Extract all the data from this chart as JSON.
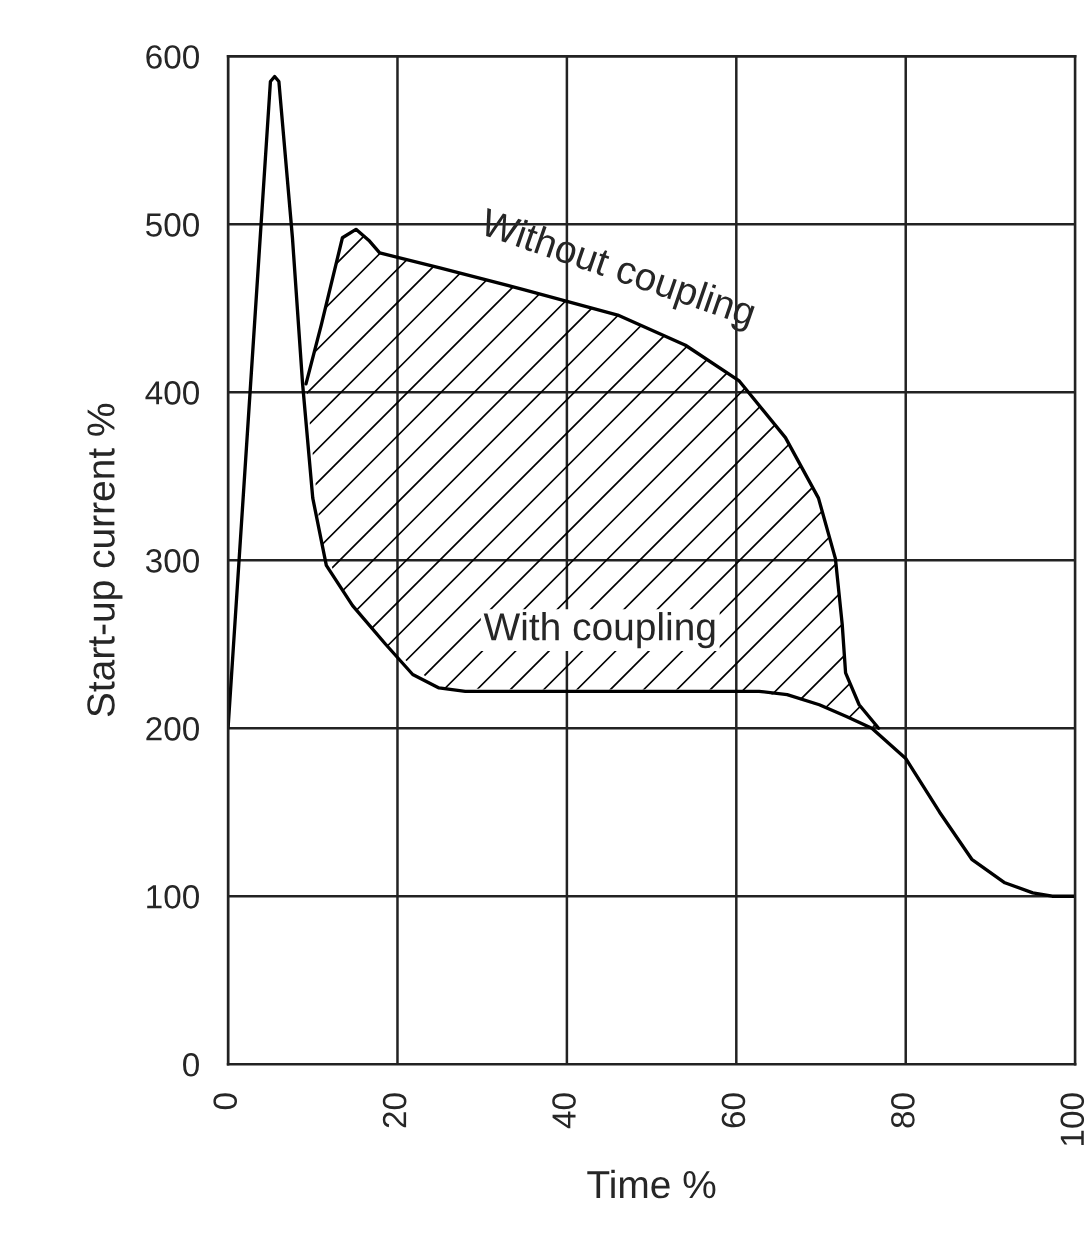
{
  "chart_data": {
    "type": "line",
    "xlabel": "Time %",
    "ylabel": "Start-up current %",
    "xlim": [
      0,
      100
    ],
    "xticks": [
      0,
      20,
      40,
      60,
      80,
      100
    ],
    "ylim": [
      0,
      600
    ],
    "yticks": [
      0,
      100,
      200,
      300,
      400,
      500,
      600
    ],
    "grid": true,
    "marker": "none",
    "line_style": "solid",
    "series": [
      {
        "name": "Without coupling",
        "color": "#000000",
        "x": [
          9.2,
          11,
          13.5,
          15.1,
          16.7,
          17.9,
          25,
          35,
          46,
          54,
          60.3,
          65.8,
          69.7,
          71.7,
          72.5,
          72.9,
          74.5,
          76.8
        ],
        "values": [
          405,
          440,
          492,
          497,
          490,
          483,
          474,
          461,
          446,
          428,
          407,
          373,
          337,
          301,
          262,
          233,
          214,
          200
        ],
        "lower": [
          405,
          310,
          282,
          270,
          260,
          253,
          224,
          223,
          223,
          223,
          223,
          219,
          214,
          210,
          208,
          207,
          203,
          200
        ],
        "upper": [
          405,
          440,
          492,
          497,
          490,
          483,
          474,
          461,
          446,
          428,
          407,
          373,
          337,
          301,
          262,
          233,
          214,
          200
        ]
      },
      {
        "name": "With coupling",
        "color": "#000000",
        "x": [
          0,
          5,
          5.5,
          6,
          7.6,
          8.8,
          10,
          11.6,
          14.7,
          18.6,
          21.8,
          24.9,
          28,
          40,
          50,
          62.7,
          66,
          69.8,
          73,
          76,
          80,
          84,
          87.8,
          91.7,
          95,
          97.3,
          100
        ],
        "values": [
          200,
          585,
          588,
          585,
          492,
          405,
          337,
          297,
          273,
          250,
          232,
          224,
          222,
          222,
          222,
          222,
          220,
          214,
          207,
          200,
          182,
          150,
          122,
          108,
          102,
          100,
          100
        ]
      }
    ]
  }
}
